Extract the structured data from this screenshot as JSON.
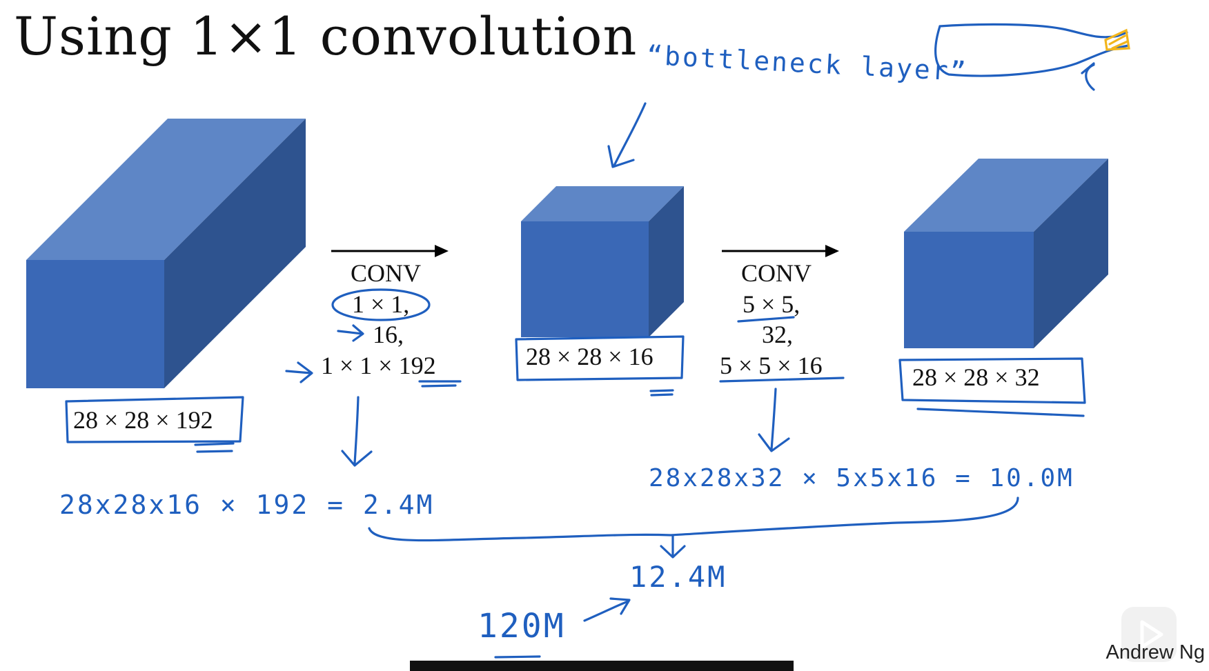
{
  "slide": {
    "title": "Using 1×1 convolution",
    "author": "Andrew Ng"
  },
  "volumes": {
    "input": "28 × 28 × 192",
    "bottleneck": "28 × 28 × 16",
    "output": "28 × 28 × 32"
  },
  "conv1": {
    "name": "CONV",
    "size": "1 × 1,",
    "filters": "16,",
    "shape": "1 × 1 × 192"
  },
  "conv2": {
    "name": "CONV",
    "size": "5 × 5,",
    "filters": "32,",
    "shape": "5 × 5 × 16"
  },
  "annotations": {
    "bottleneck_label": "“bottleneck layer”",
    "calc1": "28x28x16 × 192 = 2.4M",
    "calc2": "28x28x32 × 5x5x16 = 10.0M",
    "total": "12.4M",
    "previous_cost": "120M"
  },
  "colors": {
    "cube_front": "#3a68b6",
    "cube_top": "#5e86c6",
    "cube_side": "#2e538f",
    "ink": "#1f5fbf",
    "highlight": "#f2b51c"
  }
}
